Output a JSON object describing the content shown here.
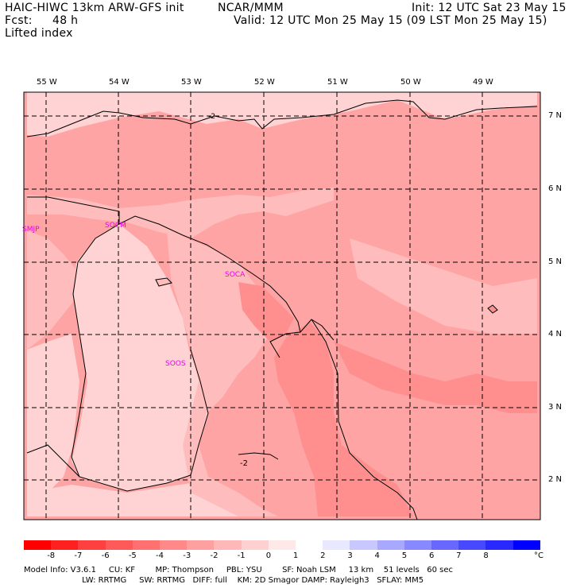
{
  "header": {
    "model_title": "HAIC-HIWC 13km ARW-GFS init",
    "org": "NCAR/MMM",
    "init": "Init: 12 UTC Sat 23 May 15",
    "fcst_label": "Fcst:",
    "fcst_value": "48 h",
    "valid": "Valid: 12 UTC Mon 25 May 15 (09 LST Mon 25 May 15)",
    "field": "Lifted index"
  },
  "axes": {
    "longitudes": [
      "55 W",
      "54 W",
      "53 W",
      "52 W",
      "51 W",
      "50 W",
      "49 W"
    ],
    "latitudes": [
      "7 N",
      "6 N",
      "5 N",
      "4 N",
      "3 N",
      "2 N"
    ]
  },
  "stations": [
    "SMJP",
    "SOCM",
    "SOCA",
    "SOOS"
  ],
  "contour_labels": [
    "-2",
    "-2"
  ],
  "colorbar": {
    "colors": [
      "#ff0000",
      "#ff2020",
      "#ff4040",
      "#ff5a5a",
      "#ff7070",
      "#ff8888",
      "#ffa0a0",
      "#ffb8b8",
      "#ffd0d0",
      "#ffe8e8",
      "#ffffff",
      "#e8e8ff",
      "#c8c8ff",
      "#a8a8ff",
      "#8888ff",
      "#6868ff",
      "#4848ff",
      "#2828ff",
      "#0000ff"
    ],
    "ticks": [
      "-8",
      "-7",
      "-6",
      "-5",
      "-4",
      "-3",
      "-2",
      "-1",
      "0",
      "1",
      "2",
      "3",
      "4",
      "5",
      "6",
      "7",
      "8"
    ],
    "unit": "°C"
  },
  "map_colors": {
    "lightest": "#ffd3d3",
    "light": "#ffbcbc",
    "medium": "#ffa4a4",
    "dark": "#ff8f8f"
  },
  "footer": {
    "line1": "Model Info: V3.6.1     CU: KF        MP: Thompson     PBL: YSU        SF: Noah LSM     13 km    51 levels   60 sec",
    "line2": "                       LW: RRTMG     SW: RRTMG   DIFF: full    KM: 2D Smagor DAMP: Rayleigh3   SFLAY: MM5"
  }
}
